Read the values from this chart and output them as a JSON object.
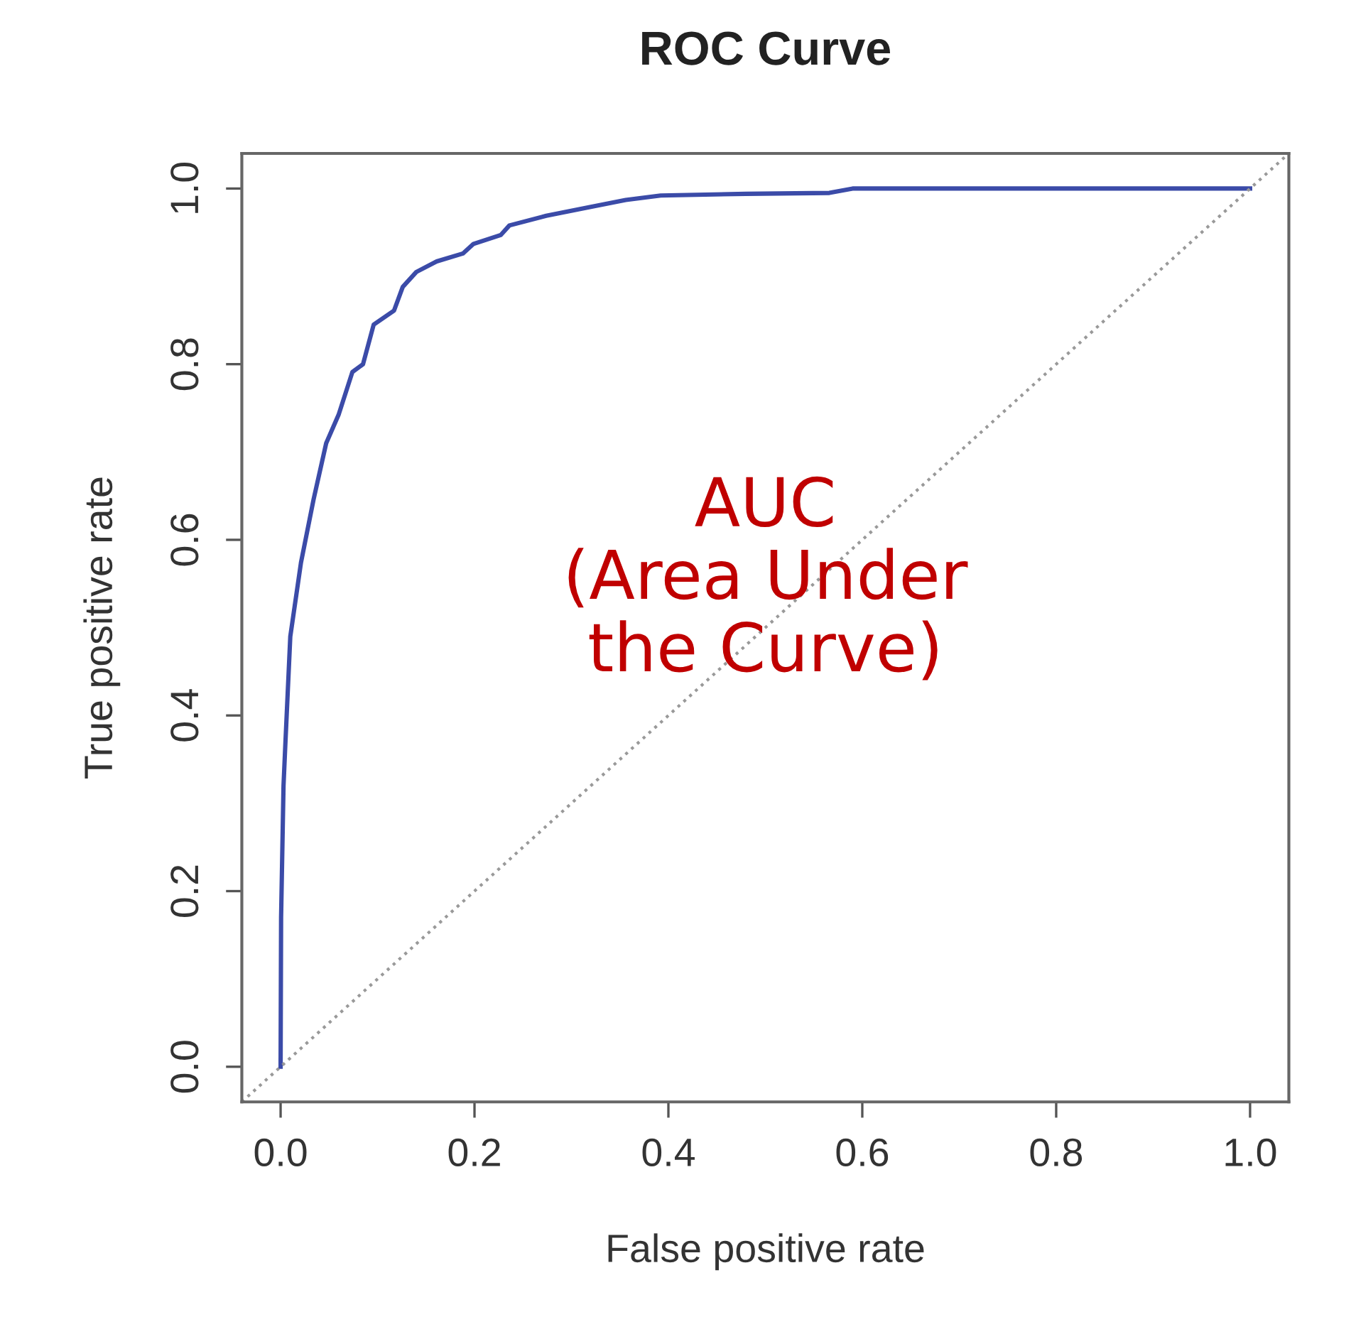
{
  "chart_data": {
    "type": "line",
    "title": "ROC Curve",
    "xlabel": "False positive rate",
    "ylabel": "True positive rate",
    "annotations": [
      "AUC\n(Area Under\nthe Curve)"
    ],
    "xlim": [
      -0.04,
      1.04
    ],
    "ylim": [
      -0.04,
      1.04
    ],
    "xticks": [
      {
        "value": 0,
        "label": "0.0"
      },
      {
        "value": 0.2,
        "label": "0.2"
      },
      {
        "value": 0.4,
        "label": "0.4"
      },
      {
        "value": 0.6,
        "label": "0.6"
      },
      {
        "value": 0.8,
        "label": "0.8"
      },
      {
        "value": 1,
        "label": "1.0"
      }
    ],
    "yticks": [
      {
        "value": 0,
        "label": "0.0"
      },
      {
        "value": 0.2,
        "label": "0.2"
      },
      {
        "value": 0.4,
        "label": "0.4"
      },
      {
        "value": 0.6,
        "label": "0.6"
      },
      {
        "value": 0.8,
        "label": "0.8"
      },
      {
        "value": 1,
        "label": "1.0"
      }
    ],
    "grid": false,
    "legend": false,
    "series": [
      {
        "color": "#3b4ba8",
        "line_style": "solid",
        "x": [
          0,
          0.0005,
          0.003,
          0.005,
          0.01,
          0.021,
          0.034,
          0.047,
          0.06,
          0.074,
          0.085,
          0.096,
          0.117,
          0.126,
          0.14,
          0.161,
          0.188,
          0.199,
          0.227,
          0.236,
          0.274,
          0.319,
          0.356,
          0.392,
          0.48,
          0.566,
          0.59,
          1
        ],
        "values": [
          0,
          0.17,
          0.32,
          0.37,
          0.49,
          0.574,
          0.646,
          0.71,
          0.743,
          0.791,
          0.8,
          0.845,
          0.861,
          0.888,
          0.905,
          0.917,
          0.926,
          0.937,
          0.947,
          0.958,
          0.969,
          0.979,
          0.987,
          0.992,
          0.994,
          0.995,
          1,
          1
        ]
      },
      {
        "color": "#999999",
        "line_style": "dotted",
        "x": [
          -0.04,
          1.04
        ],
        "values": [
          -0.04,
          1.04
        ]
      }
    ]
  }
}
